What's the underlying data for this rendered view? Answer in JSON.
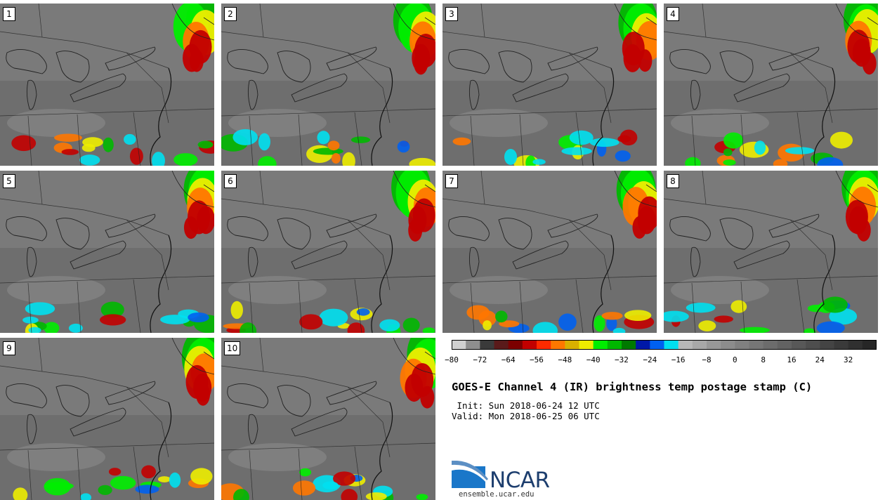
{
  "panels": [
    {
      "label": "1"
    },
    {
      "label": "2"
    },
    {
      "label": "3"
    },
    {
      "label": "4"
    },
    {
      "label": "5"
    },
    {
      "label": "6"
    },
    {
      "label": "7"
    },
    {
      "label": "8"
    },
    {
      "label": "9"
    },
    {
      "label": "10"
    }
  ],
  "colorbar": {
    "colors": [
      "#d0d0d0",
      "#8e8e8e",
      "#3a3a3a",
      "#5a1a1a",
      "#7c0000",
      "#c20000",
      "#ff2a00",
      "#ff7700",
      "#d9b000",
      "#eded00",
      "#00ee00",
      "#00b800",
      "#007a00",
      "#0018a8",
      "#0060f0",
      "#00e0f0",
      "#b8b8b8",
      "#a8a8a8",
      "#989898",
      "#8c8c8c",
      "#808080",
      "#767676",
      "#6c6c6c",
      "#626262",
      "#585858",
      "#4e4e4e",
      "#444444",
      "#3a3a3a",
      "#303030",
      "#262626"
    ],
    "ticks": [
      "−80",
      "−72",
      "−64",
      "−56",
      "−48",
      "−40",
      "−32",
      "−24",
      "−16",
      "−8",
      "0",
      "8",
      "16",
      "24",
      "32"
    ]
  },
  "title": "GOES-E Channel 4 (IR) brightness temp postage stamp (C)",
  "init": " Init: Sun 2018-06-24 12 UTC",
  "valid": "Valid: Mon 2018-06-25 06 UTC",
  "logo_text": "NCAR",
  "site": "ensemble.ucar.edu"
}
